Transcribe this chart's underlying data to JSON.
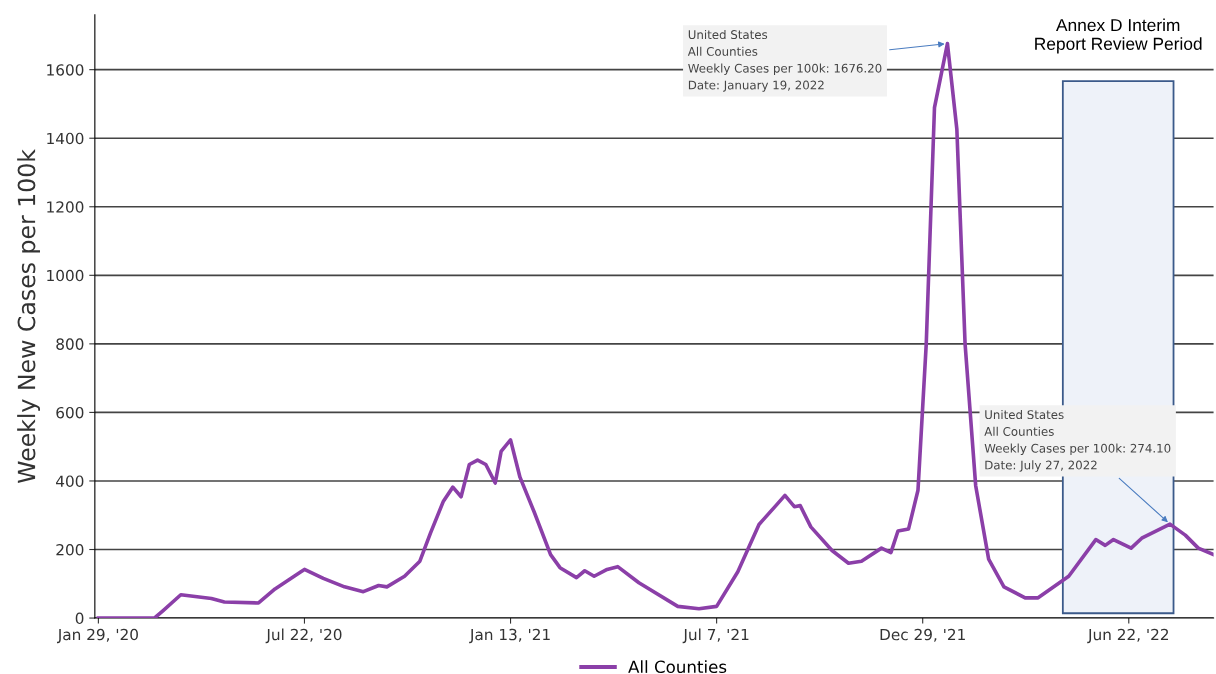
{
  "chart_data": {
    "type": "line",
    "ylabel": "Weekly New Cases per 100k",
    "x": [
      "2020-01-29",
      "2020-03-17",
      "2020-03-24",
      "2020-04-08",
      "2020-05-04",
      "2020-05-15",
      "2020-06-13",
      "2020-06-27",
      "2020-07-19",
      "2020-07-22",
      "2020-08-07",
      "2020-08-25",
      "2020-09-10",
      "2020-09-23",
      "2020-09-30",
      "2020-10-15",
      "2020-10-28",
      "2020-11-06",
      "2020-11-17",
      "2020-11-25",
      "2020-12-02",
      "2020-12-09",
      "2020-12-16",
      "2020-12-23",
      "2020-12-31",
      "2021-01-05",
      "2021-01-13",
      "2021-01-21",
      "2021-02-02",
      "2021-02-16",
      "2021-02-24",
      "2021-03-10",
      "2021-03-17",
      "2021-03-25",
      "2021-04-05",
      "2021-04-14",
      "2021-05-02",
      "2021-06-04",
      "2021-06-22",
      "2021-07-07",
      "2021-07-25",
      "2021-08-12",
      "2021-08-25",
      "2021-09-03",
      "2021-09-11",
      "2021-09-16",
      "2021-09-25",
      "2021-10-13",
      "2021-10-27",
      "2021-11-07",
      "2021-11-24",
      "2021-12-02",
      "2021-12-08",
      "2021-12-17",
      "2021-12-25",
      "2022-01-01",
      "2022-01-08",
      "2022-01-19",
      "2022-01-27",
      "2022-02-03",
      "2022-02-12",
      "2022-02-23",
      "2022-03-08",
      "2022-03-26",
      "2022-04-06",
      "2022-05-02",
      "2022-05-25",
      "2022-06-02",
      "2022-06-09",
      "2022-06-24",
      "2022-07-03",
      "2022-07-27",
      "2022-08-09",
      "2022-08-20",
      "2022-09-02"
    ],
    "series": [
      {
        "name": "All Counties",
        "color": "#8b3fa8",
        "values": [
          0,
          1,
          22,
          68,
          57,
          47,
          44,
          85,
          135,
          142,
          116,
          91,
          77,
          95,
          91,
          122,
          166,
          248,
          341,
          382,
          354,
          448,
          461,
          448,
          394,
          486,
          520,
          411,
          310,
          185,
          147,
          118,
          138,
          122,
          142,
          150,
          103,
          34,
          27,
          34,
          135,
          273,
          323,
          358,
          325,
          328,
          266,
          197,
          160,
          166,
          204,
          191,
          254,
          260,
          373,
          799,
          1489,
          1676.2,
          1426,
          799,
          386,
          172,
          91,
          59,
          59,
          122,
          229,
          212,
          229,
          204,
          233,
          274.1,
          242,
          204,
          185
        ]
      }
    ],
    "xlim": [
      "2020-01-26",
      "2022-09-02"
    ],
    "xticks": [
      {
        "value": "2020-01-29",
        "label": "Jan 29, '20"
      },
      {
        "value": "2020-07-22",
        "label": "Jul 22, '20"
      },
      {
        "value": "2021-01-13",
        "label": "Jan 13, '21"
      },
      {
        "value": "2021-07-07",
        "label": "Jul 7, '21"
      },
      {
        "value": "2021-12-29",
        "label": "Dec 29, '21"
      },
      {
        "value": "2022-06-22",
        "label": "Jun 22, '22"
      }
    ],
    "ylim": [
      0,
      1760
    ],
    "yticks": [
      0,
      200,
      400,
      600,
      800,
      1000,
      1200,
      1400,
      1600
    ],
    "grid": "y",
    "legend": "bottom",
    "marker": "none",
    "line_style": "solid",
    "bands": [
      {
        "axis": "x",
        "from": "2022-04-27",
        "to": "2022-07-30",
        "label": "Annex D Interim\nReport Review Period",
        "color": "#eef2f9"
      }
    ],
    "annotations": [
      {
        "text": "United States\nAll Counties\nWeekly Cases per 100k: 1676.20\nDate: January 19, 2022",
        "x": "2022-01-19",
        "y": 1676.2
      },
      {
        "text": "United States\nAll Counties\nWeekly Cases per 100k: 274.10\nDate: July 27, 2022",
        "x": "2022-07-27",
        "y": 274.1
      }
    ]
  }
}
